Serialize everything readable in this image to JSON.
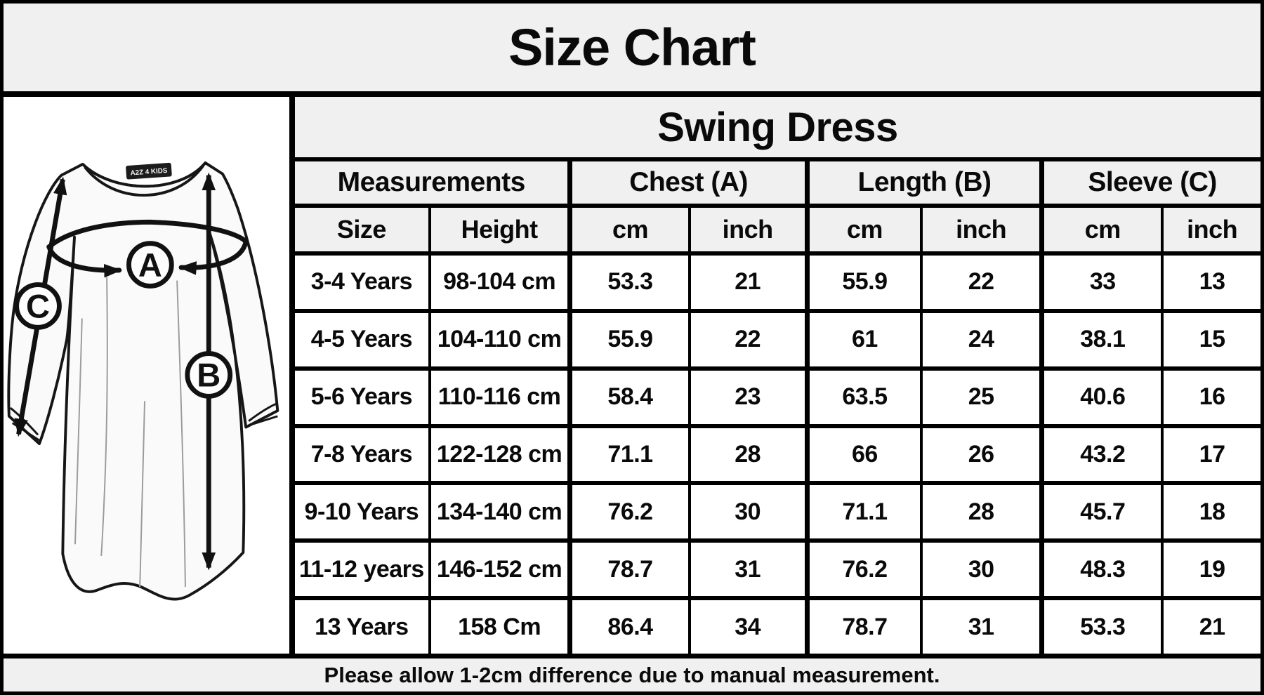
{
  "title": "Size Chart",
  "product": "Swing Dress",
  "table": {
    "group_headers": [
      {
        "label": "Measurements"
      },
      {
        "label": "Chest (A)"
      },
      {
        "label": "Length (B)"
      },
      {
        "label": "Sleeve (C)"
      }
    ],
    "sub_headers": [
      "Size",
      "Height",
      "cm",
      "inch",
      "cm",
      "inch",
      "cm",
      "inch"
    ],
    "rows": [
      [
        "3-4 Years",
        "98-104 cm",
        "53.3",
        "21",
        "55.9",
        "22",
        "33",
        "13"
      ],
      [
        "4-5 Years",
        "104-110 cm",
        "55.9",
        "22",
        "61",
        "24",
        "38.1",
        "15"
      ],
      [
        "5-6 Years",
        "110-116 cm",
        "58.4",
        "23",
        "63.5",
        "25",
        "40.6",
        "16"
      ],
      [
        "7-8 Years",
        "122-128 cm",
        "71.1",
        "28",
        "66",
        "26",
        "43.2",
        "17"
      ],
      [
        "9-10 Years",
        "134-140 cm",
        "76.2",
        "30",
        "71.1",
        "28",
        "45.7",
        "18"
      ],
      [
        "11-12 years",
        "146-152 cm",
        "78.7",
        "31",
        "76.2",
        "30",
        "48.3",
        "19"
      ],
      [
        "13 Years",
        "158 Cm",
        "86.4",
        "34",
        "78.7",
        "31",
        "53.3",
        "21"
      ]
    ]
  },
  "diagram": {
    "label_a": "A",
    "label_b": "B",
    "label_c": "C",
    "neck_tag_text": "A2Z 4 KIDS"
  },
  "footer_note": "Please allow 1-2cm difference due to manual measurement.",
  "colors": {
    "panel_gray": "#f0f0f0",
    "line_black": "#000000",
    "cell_white": "#ffffff"
  }
}
